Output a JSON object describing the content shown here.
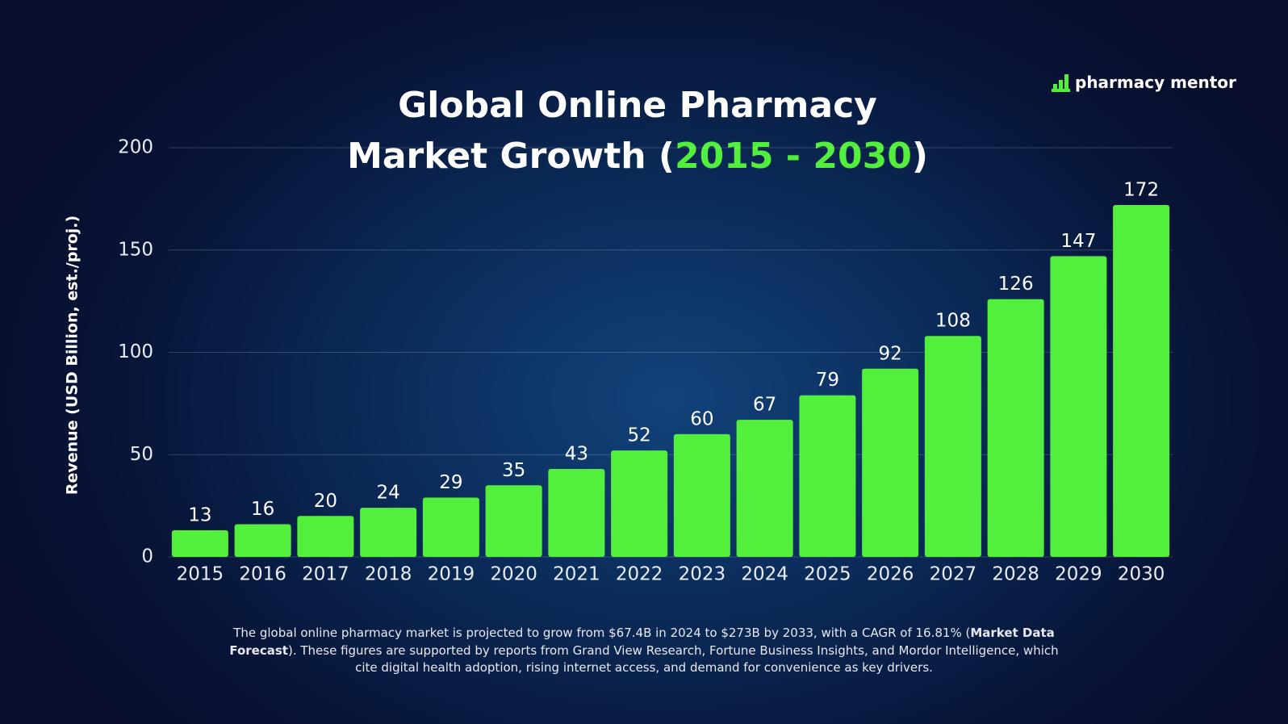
{
  "chart_data": {
    "type": "bar",
    "title": [
      "Global Online Pharmacy",
      "Market Growth (",
      "2015 - 2030",
      ")"
    ],
    "title_accent_color": "#52f03c",
    "y_label": "Revenue (USD Billion, est./proj.)",
    "categories": [
      "2015",
      "2016",
      "2017",
      "2018",
      "2019",
      "2020",
      "2021",
      "2022",
      "2023",
      "2024",
      "2025",
      "2026",
      "2027",
      "2028",
      "2029",
      "2030"
    ],
    "values": [
      13,
      16,
      20,
      24,
      29,
      35,
      43,
      52,
      60,
      67,
      79,
      92,
      108,
      126,
      147,
      172
    ],
    "color": "#52f03c",
    "ylim": [
      0,
      200
    ],
    "yticks": [
      0,
      50,
      100,
      150,
      200
    ],
    "grid": true
  },
  "logo": "pharmacy mentor",
  "footnote": [
    "The global online pharmacy market is projected to grow from $67.4B in 2024 to $273B by 2033, with a CAGR of 16.81% (",
    "Market Data Forecast",
    "). These figures are supported by reports from Grand View Research, Fortune Business Insights, and Mordor Intelligence, which cite digital health adoption, rising internet access, and demand for convenience as key drivers."
  ]
}
